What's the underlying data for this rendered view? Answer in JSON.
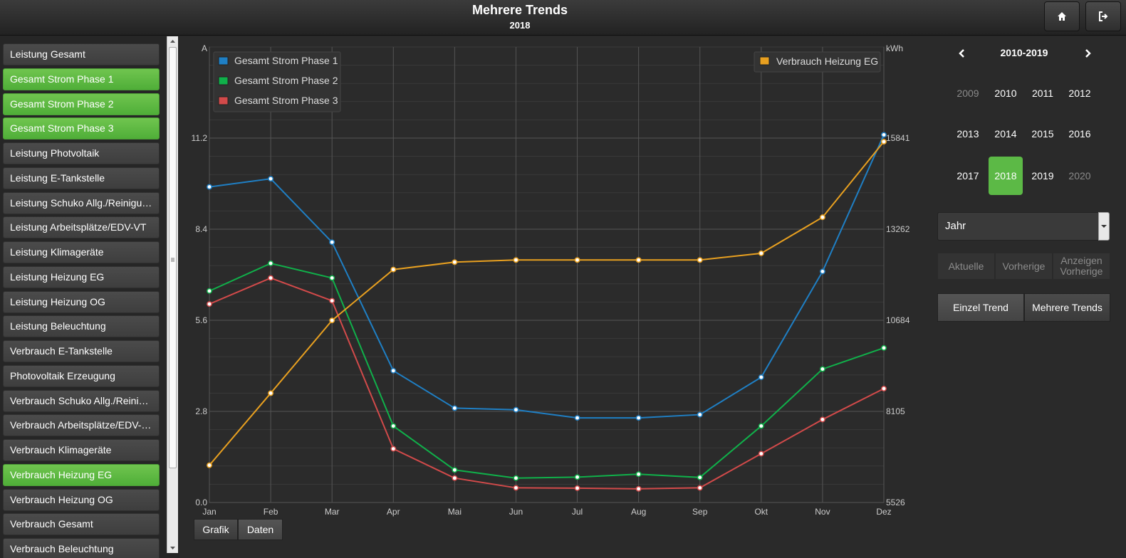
{
  "header": {
    "title": "Mehrere Trends",
    "subtitle": "2018"
  },
  "sidebar": {
    "items": [
      {
        "label": "Leistung Gesamt",
        "active": false
      },
      {
        "label": "Gesamt Strom Phase 1",
        "active": true
      },
      {
        "label": "Gesamt Strom Phase 2",
        "active": true
      },
      {
        "label": "Gesamt Strom Phase 3",
        "active": true
      },
      {
        "label": "Leistung Photvoltaik",
        "active": false
      },
      {
        "label": "Leistung E-Tankstelle",
        "active": false
      },
      {
        "label": "Leistung Schuko Allg./Reinigu…",
        "active": false
      },
      {
        "label": "Leistung Arbeitsplätze/EDV-VT",
        "active": false
      },
      {
        "label": "Leistung Klimageräte",
        "active": false
      },
      {
        "label": "Leistung Heizung EG",
        "active": false
      },
      {
        "label": "Leistung Heizung OG",
        "active": false
      },
      {
        "label": "Leistung Beleuchtung",
        "active": false
      },
      {
        "label": "Verbrauch E-Tankstelle",
        "active": false
      },
      {
        "label": "Photovoltaik Erzeugung",
        "active": false
      },
      {
        "label": "Verbrauch Schuko Allg./Reini…",
        "active": false
      },
      {
        "label": "Verbrauch Arbeitsplätze/EDV-…",
        "active": false
      },
      {
        "label": "Verbrauch Klimageräte",
        "active": false
      },
      {
        "label": "Verbrauch Heizung EG",
        "active": true
      },
      {
        "label": "Verbrauch Heizung OG",
        "active": false
      },
      {
        "label": "Verbrauch Gesamt",
        "active": false
      },
      {
        "label": "Verbrauch Beleuchtung",
        "active": false
      }
    ]
  },
  "chart_data": {
    "type": "line",
    "categories": [
      "Jan",
      "Feb",
      "Mar",
      "Apr",
      "Mai",
      "Jun",
      "Jul",
      "Aug",
      "Sep",
      "Okt",
      "Nov",
      "Dez"
    ],
    "left_axis": {
      "unit": "A",
      "ticks": [
        "0.0",
        "2.8",
        "5.6",
        "8.4",
        "11.2"
      ],
      "range": [
        0,
        14
      ]
    },
    "right_axis": {
      "unit": "kWh",
      "ticks": [
        "5526",
        "8105",
        "10684",
        "13262",
        "15841"
      ],
      "range": [
        5526,
        18420
      ]
    },
    "series": [
      {
        "name": "Gesamt Strom Phase 1",
        "axis": "left",
        "color": "#1f7fc4",
        "values": [
          9.7,
          9.95,
          8.0,
          4.05,
          2.9,
          2.85,
          2.6,
          2.6,
          2.7,
          3.85,
          7.1,
          11.3
        ]
      },
      {
        "name": "Gesamt Strom Phase 2",
        "axis": "left",
        "color": "#10b04a",
        "values": [
          6.5,
          7.35,
          6.9,
          2.35,
          1.0,
          0.75,
          0.78,
          0.87,
          0.77,
          2.35,
          4.1,
          4.75
        ]
      },
      {
        "name": "Gesamt Strom Phase 3",
        "axis": "left",
        "color": "#d24a4a",
        "values": [
          6.1,
          6.9,
          6.2,
          1.65,
          0.75,
          0.45,
          0.44,
          0.42,
          0.45,
          1.5,
          2.55,
          3.5
        ]
      },
      {
        "name": "Verbrauch Heizung EG",
        "axis": "right",
        "color": "#e8a020",
        "values": [
          6580,
          8620,
          10680,
          12120,
          12330,
          12390,
          12390,
          12390,
          12390,
          12580,
          13600,
          15740
        ]
      }
    ],
    "legend_left": "top-left",
    "legend_right": "top-right"
  },
  "chart_buttons": {
    "graphic": "Grafik",
    "data": "Daten"
  },
  "right_panel": {
    "range_label": "2010-2019",
    "years": [
      {
        "label": "2009",
        "state": "dim"
      },
      {
        "label": "2010",
        "state": "normal"
      },
      {
        "label": "2011",
        "state": "normal"
      },
      {
        "label": "2012",
        "state": "normal"
      },
      {
        "label": "2013",
        "state": "normal"
      },
      {
        "label": "2014",
        "state": "normal"
      },
      {
        "label": "2015",
        "state": "normal"
      },
      {
        "label": "2016",
        "state": "normal"
      },
      {
        "label": "2017",
        "state": "normal"
      },
      {
        "label": "2018",
        "state": "selected"
      },
      {
        "label": "2019",
        "state": "normal"
      },
      {
        "label": "2020",
        "state": "dim"
      }
    ],
    "period": "Jahr",
    "nav": {
      "current": "Aktuelle",
      "previous": "Vorherige",
      "show_previous_1": "Anzeigen",
      "show_previous_2": "Vorherige"
    },
    "mode": {
      "single": "Einzel Trend",
      "multi": "Mehrere Trends"
    }
  }
}
